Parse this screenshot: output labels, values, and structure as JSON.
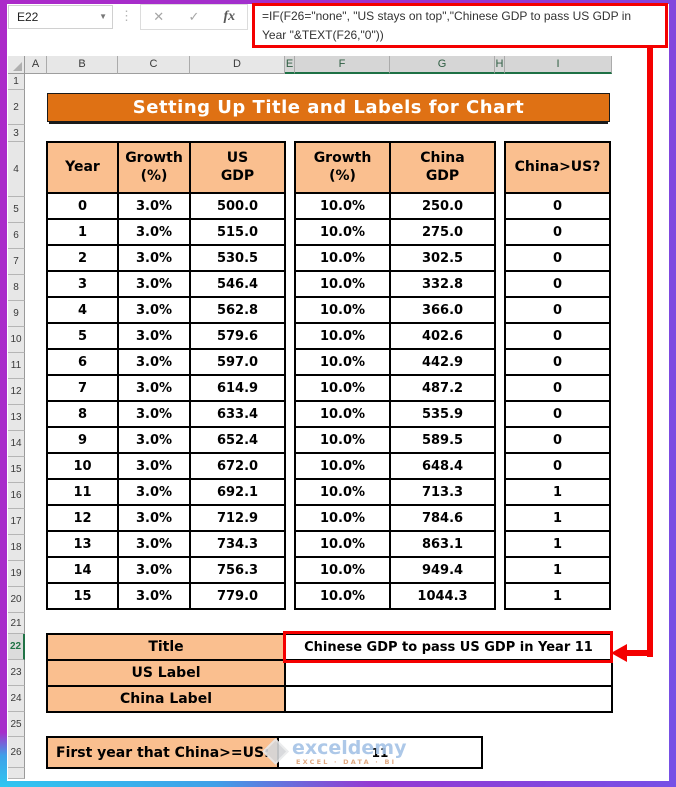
{
  "window": {
    "name_box": "E22",
    "formula_bar": {
      "cancel": "✕",
      "enter": "✓",
      "fx": "fx",
      "line1": "=IF(F26=\"none\", \"US stays on top\",\"Chinese GDP to pass US GDP in",
      "line2": "Year \"&TEXT(F26,\"0\"))"
    },
    "column_headers": [
      "A",
      "B",
      "C",
      "D",
      "E",
      "F",
      "G",
      "H",
      "I"
    ],
    "row_headers": [
      "1",
      "2",
      "3",
      "4",
      "5",
      "6",
      "7",
      "8",
      "9",
      "10",
      "11",
      "12",
      "13",
      "14",
      "15",
      "16",
      "17",
      "18",
      "19",
      "20",
      "21",
      "22",
      "23",
      "24",
      "25",
      "26"
    ]
  },
  "sheet": {
    "banner": "Setting Up Title and Labels for Chart",
    "table": {
      "us_headers": [
        "Year",
        "Growth\n(%)",
        "US\nGDP"
      ],
      "china_headers": [
        "Growth\n(%)",
        "China\nGDP"
      ],
      "compare_header": "China>US?",
      "rows": [
        {
          "year": "0",
          "us_growth": "3.0%",
          "us_gdp": "500.0",
          "china_growth": "10.0%",
          "china_gdp": "250.0",
          "china_gt_us": "0"
        },
        {
          "year": "1",
          "us_growth": "3.0%",
          "us_gdp": "515.0",
          "china_growth": "10.0%",
          "china_gdp": "275.0",
          "china_gt_us": "0"
        },
        {
          "year": "2",
          "us_growth": "3.0%",
          "us_gdp": "530.5",
          "china_growth": "10.0%",
          "china_gdp": "302.5",
          "china_gt_us": "0"
        },
        {
          "year": "3",
          "us_growth": "3.0%",
          "us_gdp": "546.4",
          "china_growth": "10.0%",
          "china_gdp": "332.8",
          "china_gt_us": "0"
        },
        {
          "year": "4",
          "us_growth": "3.0%",
          "us_gdp": "562.8",
          "china_growth": "10.0%",
          "china_gdp": "366.0",
          "china_gt_us": "0"
        },
        {
          "year": "5",
          "us_growth": "3.0%",
          "us_gdp": "579.6",
          "china_growth": "10.0%",
          "china_gdp": "402.6",
          "china_gt_us": "0"
        },
        {
          "year": "6",
          "us_growth": "3.0%",
          "us_gdp": "597.0",
          "china_growth": "10.0%",
          "china_gdp": "442.9",
          "china_gt_us": "0"
        },
        {
          "year": "7",
          "us_growth": "3.0%",
          "us_gdp": "614.9",
          "china_growth": "10.0%",
          "china_gdp": "487.2",
          "china_gt_us": "0"
        },
        {
          "year": "8",
          "us_growth": "3.0%",
          "us_gdp": "633.4",
          "china_growth": "10.0%",
          "china_gdp": "535.9",
          "china_gt_us": "0"
        },
        {
          "year": "9",
          "us_growth": "3.0%",
          "us_gdp": "652.4",
          "china_growth": "10.0%",
          "china_gdp": "589.5",
          "china_gt_us": "0"
        },
        {
          "year": "10",
          "us_growth": "3.0%",
          "us_gdp": "672.0",
          "china_growth": "10.0%",
          "china_gdp": "648.4",
          "china_gt_us": "0"
        },
        {
          "year": "11",
          "us_growth": "3.0%",
          "us_gdp": "692.1",
          "china_growth": "10.0%",
          "china_gdp": "713.3",
          "china_gt_us": "1"
        },
        {
          "year": "12",
          "us_growth": "3.0%",
          "us_gdp": "712.9",
          "china_growth": "10.0%",
          "china_gdp": "784.6",
          "china_gt_us": "1"
        },
        {
          "year": "13",
          "us_growth": "3.0%",
          "us_gdp": "734.3",
          "china_growth": "10.0%",
          "china_gdp": "863.1",
          "china_gt_us": "1"
        },
        {
          "year": "14",
          "us_growth": "3.0%",
          "us_gdp": "756.3",
          "china_growth": "10.0%",
          "china_gdp": "949.4",
          "china_gt_us": "1"
        },
        {
          "year": "15",
          "us_growth": "3.0%",
          "us_gdp": "779.0",
          "china_growth": "10.0%",
          "china_gdp": "1044.3",
          "china_gt_us": "1"
        }
      ]
    },
    "labels": [
      {
        "label": "Title",
        "value": "Chinese GDP to pass US GDP in Year 11"
      },
      {
        "label": "US Label",
        "value": ""
      },
      {
        "label": "China Label",
        "value": ""
      }
    ],
    "first_year": {
      "label": "First year that China>=US:",
      "value": "11"
    }
  },
  "watermark": {
    "brand": "exceldemy",
    "tagline": "EXCEL · DATA · BI"
  },
  "colors": {
    "accent_orange": "#DF7114",
    "peach": "#FABF8F",
    "annotation_red": "#F40000",
    "excel_green": "#217346"
  }
}
